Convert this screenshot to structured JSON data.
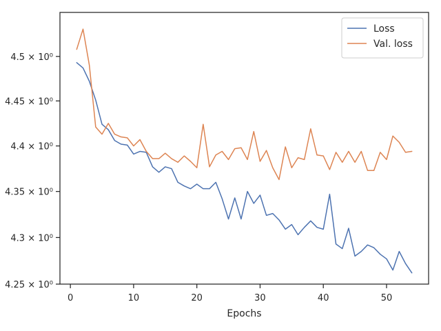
{
  "chart_data": {
    "type": "line",
    "title": "",
    "xlabel": "Epochs",
    "ylabel": "",
    "xlim": [
      -1.65,
      56.65
    ],
    "ylim": [
      4.25,
      4.55
    ],
    "yscale": "log",
    "grid": false,
    "legend_position": "top-right",
    "xticks": [
      0,
      10,
      20,
      30,
      40,
      50
    ],
    "xtick_labels": [
      "0",
      "10",
      "20",
      "30",
      "40",
      "50"
    ],
    "yticks": [
      4.25,
      4.3,
      4.35,
      4.4,
      4.45,
      4.5
    ],
    "ytick_labels": [
      "4.25 × 10⁰",
      "4.3 × 10⁰",
      "4.35 × 10⁰",
      "4.4 × 10⁰",
      "4.45 × 10⁰",
      "4.5 × 10⁰"
    ],
    "x": [
      1,
      2,
      3,
      4,
      5,
      6,
      7,
      8,
      9,
      10,
      11,
      12,
      13,
      14,
      15,
      16,
      17,
      18,
      19,
      20,
      21,
      22,
      23,
      24,
      25,
      26,
      27,
      28,
      29,
      30,
      31,
      32,
      33,
      34,
      35,
      36,
      37,
      38,
      39,
      40,
      41,
      42,
      43,
      44,
      45,
      46,
      47,
      48,
      49,
      50,
      51,
      52,
      53,
      54
    ],
    "series": [
      {
        "name": "Loss",
        "color": "#4c72b0",
        "values": [
          4.493,
          4.487,
          4.472,
          4.451,
          4.424,
          4.418,
          4.406,
          4.402,
          4.401,
          4.391,
          4.394,
          4.393,
          4.377,
          4.371,
          4.377,
          4.375,
          4.36,
          4.356,
          4.353,
          4.358,
          4.353,
          4.353,
          4.36,
          4.342,
          4.32,
          4.343,
          4.32,
          4.35,
          4.337,
          4.346,
          4.324,
          4.326,
          4.319,
          4.309,
          4.314,
          4.303,
          4.311,
          4.318,
          4.311,
          4.309,
          4.347,
          4.293,
          4.288,
          4.31,
          4.28,
          4.285,
          4.292,
          4.289,
          4.282,
          4.277,
          4.265,
          4.285,
          4.272,
          4.262
        ]
      },
      {
        "name": "Val. loss",
        "color": "#dd8452",
        "values": [
          4.508,
          4.531,
          4.49,
          4.421,
          4.413,
          4.425,
          4.413,
          4.41,
          4.409,
          4.4,
          4.407,
          4.394,
          4.386,
          4.386,
          4.392,
          4.386,
          4.382,
          4.389,
          4.383,
          4.376,
          4.424,
          4.377,
          4.39,
          4.394,
          4.385,
          4.397,
          4.398,
          4.385,
          4.416,
          4.383,
          4.395,
          4.376,
          4.363,
          4.399,
          4.376,
          4.387,
          4.385,
          4.419,
          4.39,
          4.389,
          4.374,
          4.393,
          4.382,
          4.394,
          4.382,
          4.394,
          4.373,
          4.373,
          4.393,
          4.385,
          4.411,
          4.404,
          4.393,
          4.394
        ]
      }
    ]
  }
}
